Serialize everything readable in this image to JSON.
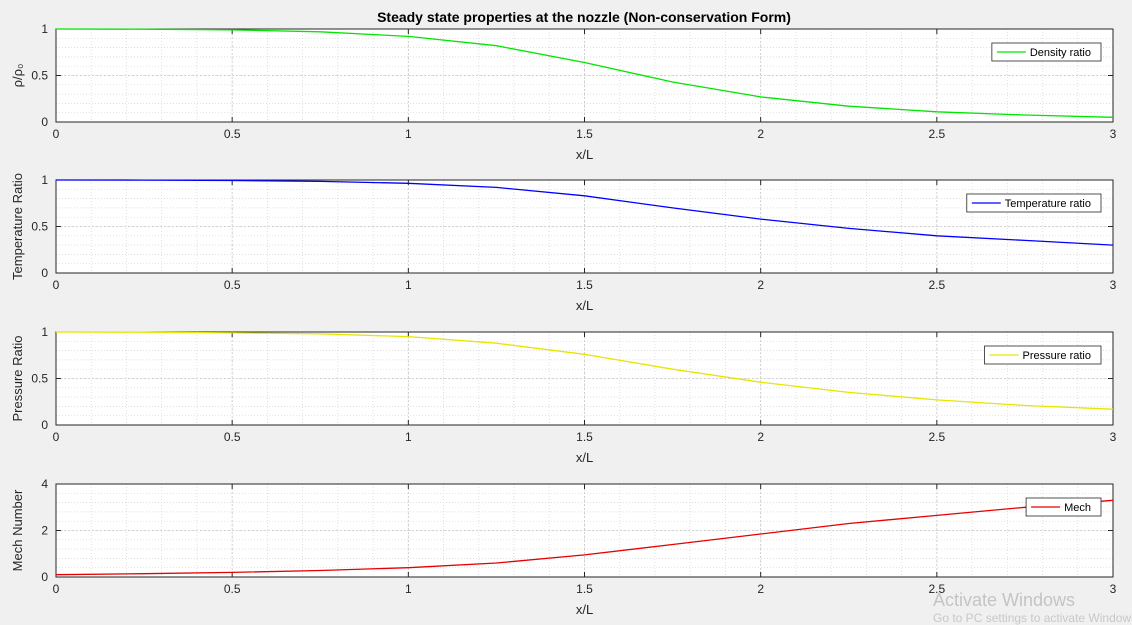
{
  "figure": {
    "title": "Steady state properties at the nozzle (Non-conservation Form)"
  },
  "watermark": {
    "line1": "Activate Windows",
    "line2": "Go to PC settings to activate Windows."
  },
  "chart_data": [
    {
      "type": "line",
      "xlabel": "x/L",
      "ylabel": "ρ/ρ₀",
      "xlim": [
        0,
        3
      ],
      "ylim": [
        0,
        1
      ],
      "xticks": [
        "0",
        "0.5",
        "1",
        "1.5",
        "2",
        "2.5",
        "3"
      ],
      "yticks": [
        "0",
        "0.5",
        "1"
      ],
      "grid": true,
      "minor_grid": true,
      "legend_position": "top-right",
      "series": [
        {
          "name": "Density ratio",
          "color": "#00e600",
          "x": [
            0,
            0.25,
            0.5,
            0.75,
            1.0,
            1.25,
            1.5,
            1.75,
            2.0,
            2.25,
            2.5,
            2.75,
            3.0
          ],
          "y": [
            1.0,
            0.998,
            0.99,
            0.97,
            0.92,
            0.82,
            0.64,
            0.43,
            0.27,
            0.17,
            0.11,
            0.075,
            0.05
          ]
        }
      ]
    },
    {
      "type": "line",
      "xlabel": "x/L",
      "ylabel": "Temperature Ratio",
      "xlim": [
        0,
        3
      ],
      "ylim": [
        0,
        1
      ],
      "xticks": [
        "0",
        "0.5",
        "1",
        "1.5",
        "2",
        "2.5",
        "3"
      ],
      "yticks": [
        "0",
        "0.5",
        "1"
      ],
      "grid": true,
      "minor_grid": true,
      "legend_position": "top-right",
      "series": [
        {
          "name": "Temperature ratio",
          "color": "#0000ff",
          "x": [
            0,
            0.25,
            0.5,
            0.75,
            1.0,
            1.25,
            1.5,
            1.75,
            2.0,
            2.25,
            2.5,
            2.75,
            3.0
          ],
          "y": [
            1.0,
            0.999,
            0.995,
            0.985,
            0.965,
            0.92,
            0.83,
            0.7,
            0.58,
            0.48,
            0.4,
            0.35,
            0.3
          ]
        }
      ]
    },
    {
      "type": "line",
      "xlabel": "x/L",
      "ylabel": "Pressure Ratio",
      "xlim": [
        0,
        3
      ],
      "ylim": [
        0,
        1
      ],
      "xticks": [
        "0",
        "0.5",
        "1",
        "1.5",
        "2",
        "2.5",
        "3"
      ],
      "yticks": [
        "0",
        "0.5",
        "1"
      ],
      "grid": true,
      "minor_grid": true,
      "legend_position": "top-right",
      "series": [
        {
          "name": "Pressure ratio",
          "color": "#e6e600",
          "x": [
            0,
            0.25,
            0.5,
            0.75,
            1.0,
            1.25,
            1.5,
            1.75,
            2.0,
            2.25,
            2.5,
            2.75,
            3.0
          ],
          "y": [
            1.0,
            0.998,
            0.99,
            0.98,
            0.95,
            0.88,
            0.76,
            0.6,
            0.46,
            0.35,
            0.27,
            0.21,
            0.17
          ]
        }
      ]
    },
    {
      "type": "line",
      "xlabel": "x/L",
      "ylabel": "Mech Number",
      "xlim": [
        0,
        3
      ],
      "ylim": [
        0,
        4
      ],
      "xticks": [
        "0",
        "0.5",
        "1",
        "1.5",
        "2",
        "2.5",
        "3"
      ],
      "yticks": [
        "0",
        "2",
        "4"
      ],
      "grid": true,
      "minor_grid": true,
      "legend_position": "top-right",
      "series": [
        {
          "name": "Mech",
          "color": "#e60000",
          "x": [
            0,
            0.25,
            0.5,
            0.75,
            1.0,
            1.25,
            1.5,
            1.75,
            2.0,
            2.25,
            2.5,
            2.75,
            3.0
          ],
          "y": [
            0.1,
            0.14,
            0.2,
            0.28,
            0.4,
            0.6,
            0.95,
            1.4,
            1.85,
            2.3,
            2.65,
            3.0,
            3.3
          ]
        }
      ]
    }
  ]
}
